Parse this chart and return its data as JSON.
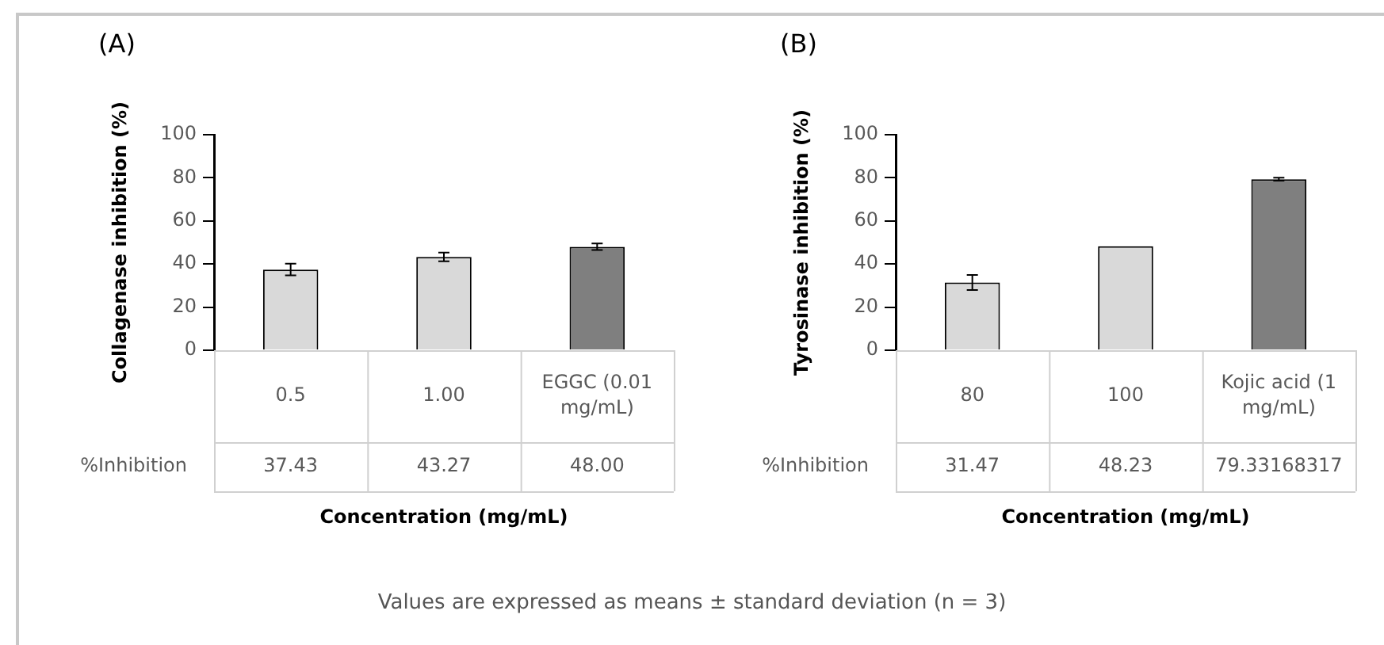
{
  "chart_data": [
    {
      "type": "bar",
      "title": "(A)",
      "ylabel": "Collagenase inhibition (%)",
      "xlabel": "Concentration (mg/mL)",
      "categories": [
        "0.5",
        "1.00",
        "EGGC (0.01 mg/mL)"
      ],
      "series": [
        {
          "name": "%Inhibition",
          "values": [
            37.43,
            43.27,
            48.0
          ],
          "colors": [
            "#d9d9d9",
            "#d9d9d9",
            "#7f7f7f"
          ],
          "errors": [
            2.7,
            2,
            1.5
          ],
          "value_labels": [
            "37.43",
            "43.27",
            "48.00"
          ]
        }
      ],
      "ylim": [
        0,
        100
      ],
      "yticks": [
        0,
        20,
        40,
        60,
        80,
        100
      ],
      "grid": false,
      "legend": false
    },
    {
      "type": "bar",
      "title": "(B)",
      "ylabel": "Tyrosinase inhibition (%)",
      "xlabel": "Concentration (mg/mL)",
      "categories": [
        "80",
        "100",
        "Kojic acid (1 mg/mL)"
      ],
      "series": [
        {
          "name": "%Inhibition",
          "values": [
            31.47,
            48.23,
            79.33168317
          ],
          "colors": [
            "#d9d9d9",
            "#d9d9d9",
            "#7f7f7f"
          ],
          "errors": [
            3.5,
            null,
            0.7
          ],
          "value_labels": [
            "31.47",
            "48.23",
            "79.33168317"
          ]
        }
      ],
      "ylim": [
        0,
        100
      ],
      "yticks": [
        0,
        20,
        40,
        60,
        80,
        100
      ],
      "grid": false,
      "legend": false,
      "annotations": [
        "Values are expressed as means ± standard deviation (n = 3)"
      ]
    }
  ]
}
